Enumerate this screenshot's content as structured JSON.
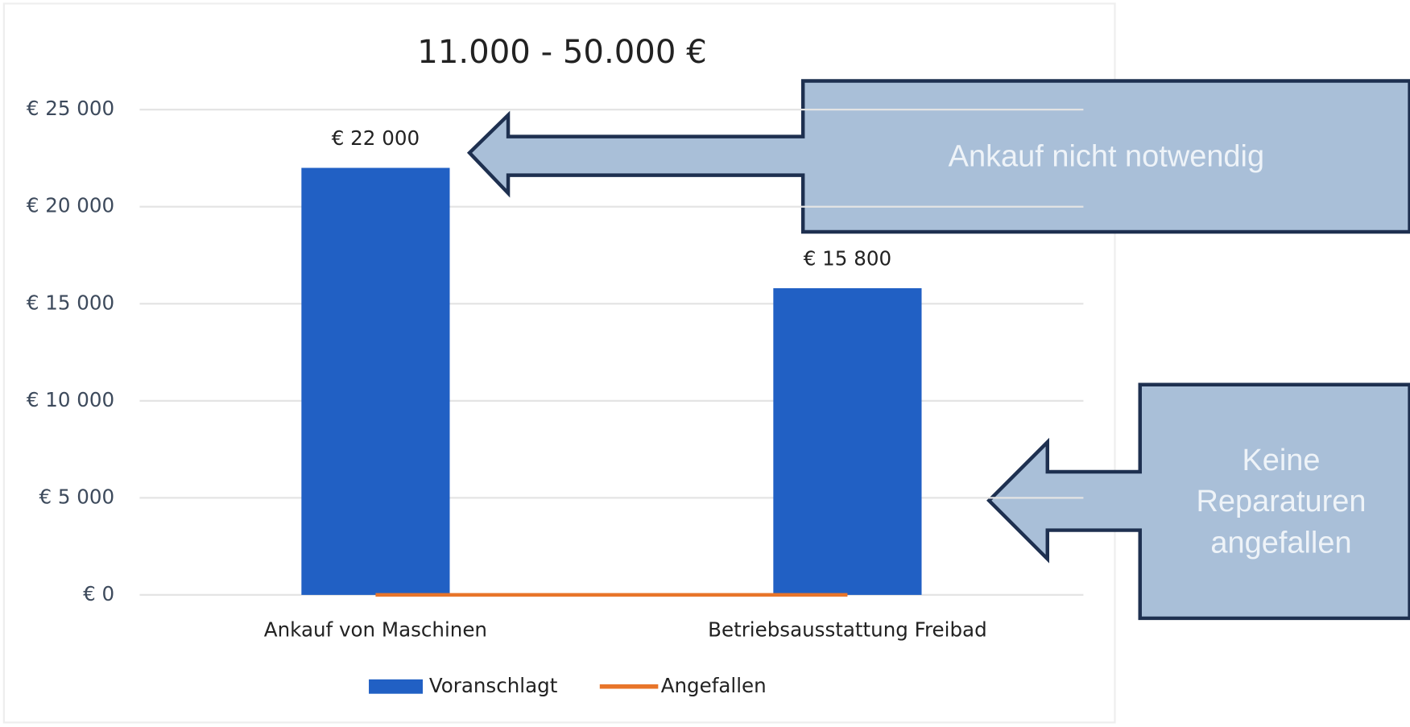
{
  "chart_data": {
    "type": "bar",
    "title": "11.000 - 50.000 €",
    "categories": [
      "Ankauf von Maschinen",
      "Betriebsausstattung Freibad"
    ],
    "series": [
      {
        "name": "Voranschlagt",
        "type": "bar",
        "color": "#2160c4",
        "values": [
          22000,
          15800
        ],
        "value_labels": [
          "€ 22 000",
          "€ 15 800"
        ]
      },
      {
        "name": "Angefallen",
        "type": "line",
        "color": "#e8752a",
        "values": [
          0,
          0
        ]
      }
    ],
    "ylim": [
      0,
      25000
    ],
    "yticks": [
      {
        "value": 0,
        "label": "€ 0"
      },
      {
        "value": 5000,
        "label": "€ 5 000"
      },
      {
        "value": 10000,
        "label": "€ 10 000"
      },
      {
        "value": 15000,
        "label": "€ 15 000"
      },
      {
        "value": 20000,
        "label": "€ 20 000"
      },
      {
        "value": 25000,
        "label": "€ 25 000"
      }
    ],
    "grid": true,
    "legend": "bottom",
    "annotations": [
      {
        "text": "Ankauf nicht notwendig"
      },
      {
        "text": "Keine Reparaturen angefallen"
      }
    ]
  }
}
